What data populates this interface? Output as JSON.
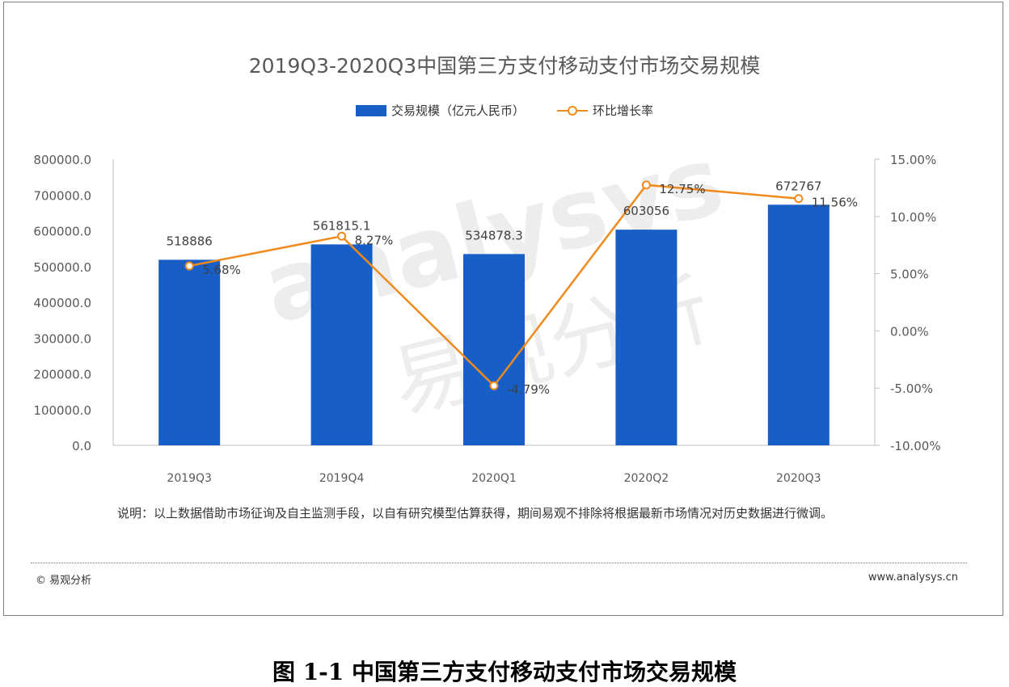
{
  "figure": {
    "caption": "图 1-1 中国第三方支付移动支付市场交易规模",
    "note": "说明：以上数据借助市场征询及自主监测手段，以自有研究模型估算获得，期间易观不排除将根据最新市场情况对历史数据进行微调。",
    "footer_left": "© 易观分析",
    "footer_right": "www.analysys.cn",
    "watermark": "analysys 易观分析"
  },
  "colors": {
    "bar": "#175fc7",
    "line": "#f08a1c",
    "axis": "#595959"
  },
  "chart_data": {
    "type": "bar",
    "title": "2019Q3-2020Q3中国第三方支付移动支付市场交易规模",
    "categories": [
      "2019Q3",
      "2019Q4",
      "2020Q1",
      "2020Q2",
      "2020Q3"
    ],
    "legend_position": "top-center",
    "grid": false,
    "series": [
      {
        "name": "交易规模（亿元人民币）",
        "type": "bar",
        "axis": "left",
        "values": [
          518886,
          561815.1,
          534878.3,
          603056,
          672767
        ],
        "labels": [
          "518886",
          "561815.1",
          "534878.3",
          "603056",
          "672767"
        ]
      },
      {
        "name": "环比增长率",
        "type": "line",
        "axis": "right",
        "values": [
          5.68,
          8.27,
          -4.79,
          12.75,
          11.56
        ],
        "labels": [
          "5.68%",
          "8.27%",
          "-4.79%",
          "12.75%",
          "11.56%"
        ]
      }
    ],
    "y_left": {
      "range": [
        0,
        800000
      ],
      "ticks": [
        0,
        100000,
        200000,
        300000,
        400000,
        500000,
        600000,
        700000,
        800000
      ],
      "tick_labels": [
        "0.0",
        "100000.0",
        "200000.0",
        "300000.0",
        "400000.0",
        "500000.0",
        "600000.0",
        "700000.0",
        "800000.0"
      ]
    },
    "y_right": {
      "range": [
        -10,
        15
      ],
      "ticks": [
        -10,
        -5,
        0,
        5,
        10,
        15
      ],
      "tick_labels": [
        "-10.00%",
        "-5.00%",
        "0.00%",
        "5.00%",
        "10.00%",
        "15.00%"
      ]
    }
  }
}
